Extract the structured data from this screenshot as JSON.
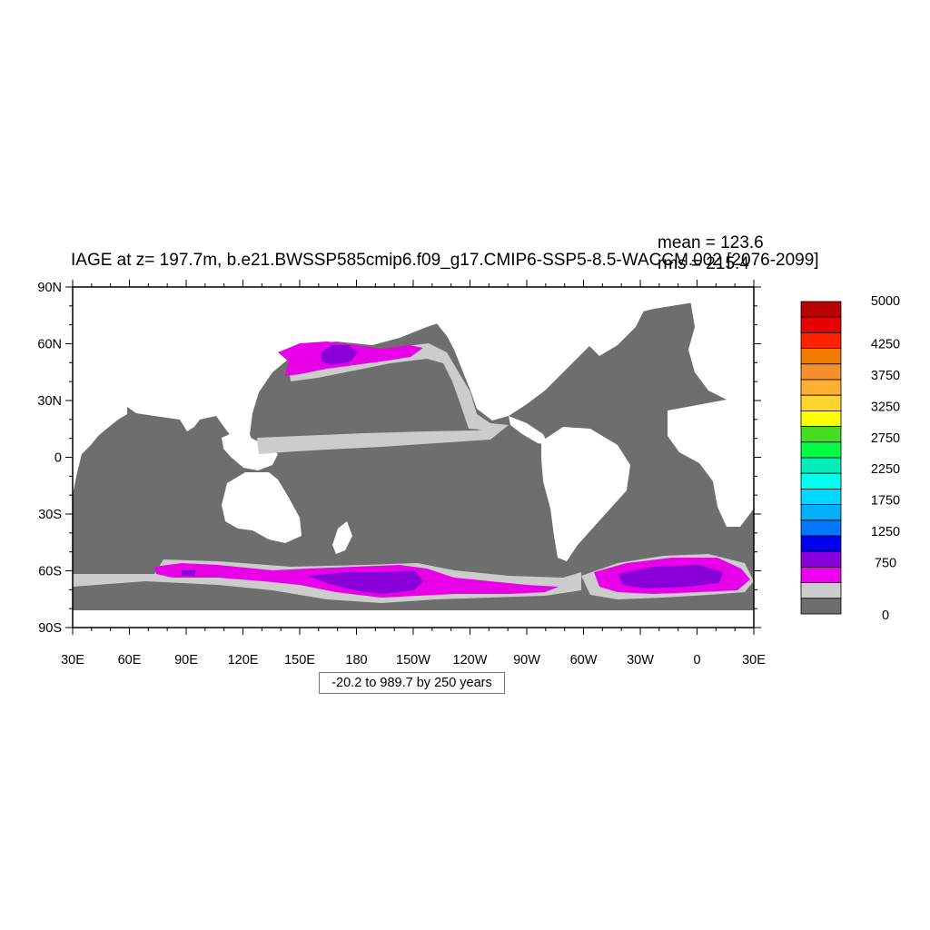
{
  "title": "IAGE at z= 197.7m, b.e21.BWSSP585cmip6.f09_g17.CMIP6-SSP5-8.5-WACCM.002 [2076-2099]",
  "stats": {
    "mean": "mean = 123.6",
    "rms": "rms = 215.4"
  },
  "contour_info": "-20.2 to 989.7 by 250 years",
  "lat_ticks": [
    "90N",
    "60N",
    "30N",
    "0",
    "30S",
    "60S",
    "90S"
  ],
  "lon_ticks": [
    "30E",
    "60E",
    "90E",
    "120E",
    "150E",
    "180",
    "150W",
    "120W",
    "90W",
    "60W",
    "30W",
    "0",
    "30E"
  ],
  "colorbar": {
    "labels": [
      "5000",
      "4250",
      "3750",
      "3250",
      "2750",
      "2250",
      "1750",
      "1250",
      "750",
      "0"
    ],
    "colors": [
      "#bb0000",
      "#e60000",
      "#ff2200",
      "#f07b00",
      "#f59030",
      "#ffb030",
      "#ffd430",
      "#ffff00",
      "#44dd22",
      "#00ff44",
      "#00eebb",
      "#00ffee",
      "#00d8ff",
      "#00b0ff",
      "#0077ff",
      "#0000ee",
      "#8800dd",
      "#ee00ee",
      "#cccccc",
      "#6e6e6e"
    ]
  },
  "map_colors": {
    "ocean_base": "#6e6e6e",
    "land": "#ffffff",
    "band_gray": "#cccccc",
    "magenta": "#e800e8",
    "purple": "#8a00d8"
  }
}
